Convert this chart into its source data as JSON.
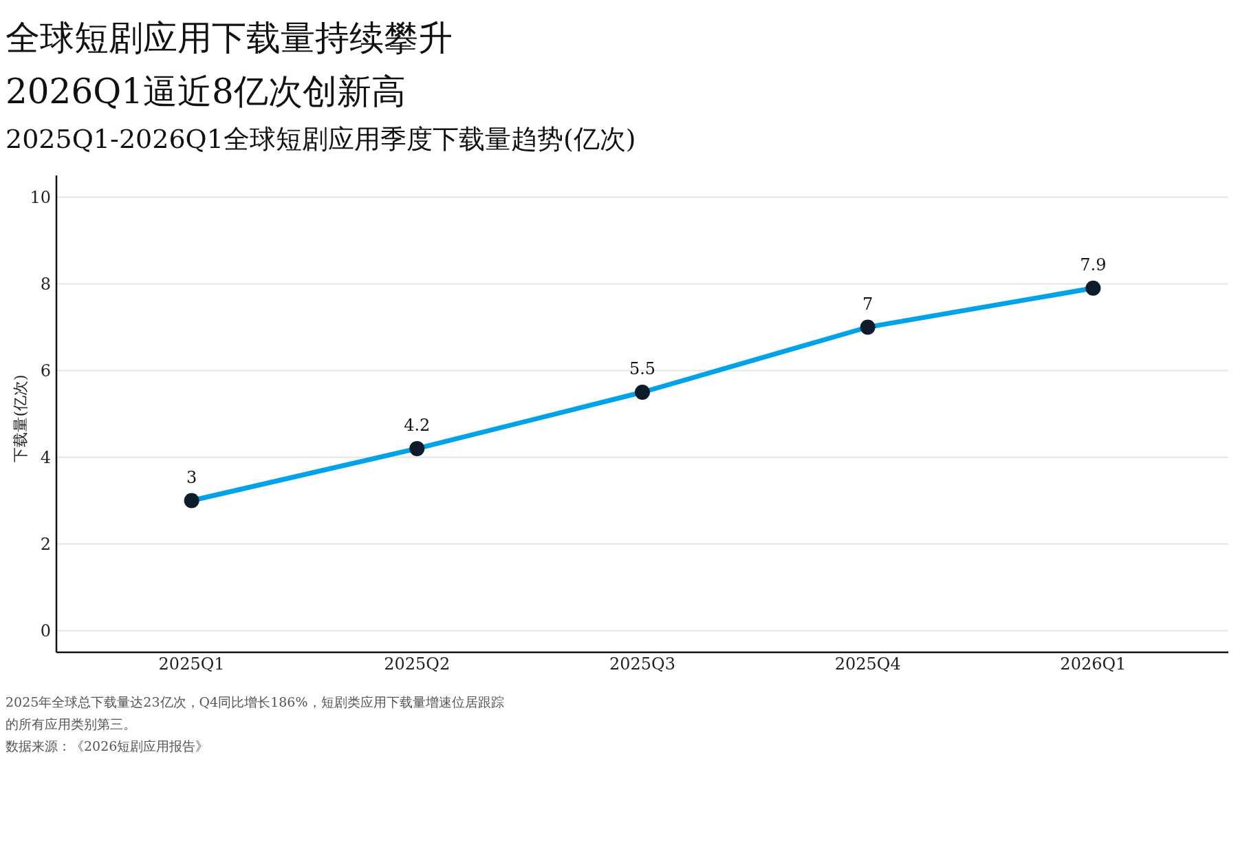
{
  "chart_data": {
    "type": "line",
    "title": "全球短剧应用下载量持续攀升\n2026Q1逼近8亿次创新高",
    "subtitle": "2025Q1-2026Q1全球短剧应用季度下载量趋势(亿次)",
    "ylabel": "下载量(亿次)",
    "categories": [
      "2025Q1",
      "2025Q2",
      "2025Q3",
      "2025Q4",
      "2026Q1"
    ],
    "series": [
      {
        "color": "#00a3e8",
        "values": [
          3,
          4.2,
          5.5,
          7,
          7.9
        ]
      }
    ],
    "ylim": [
      -0.5,
      10.5
    ],
    "yticks": [
      0,
      2,
      4,
      6,
      8,
      10
    ],
    "grid": "y",
    "legend": false,
    "marker": "circle",
    "line_style": "solid",
    "data_labels": true,
    "annotations": [
      "2025年全球总下载量达23亿次，Q4同比增长186%，短剧类应用下载量增速位居跟踪的所有应用类别第三。",
      "数据来源：《2026短剧应用报告》"
    ]
  }
}
